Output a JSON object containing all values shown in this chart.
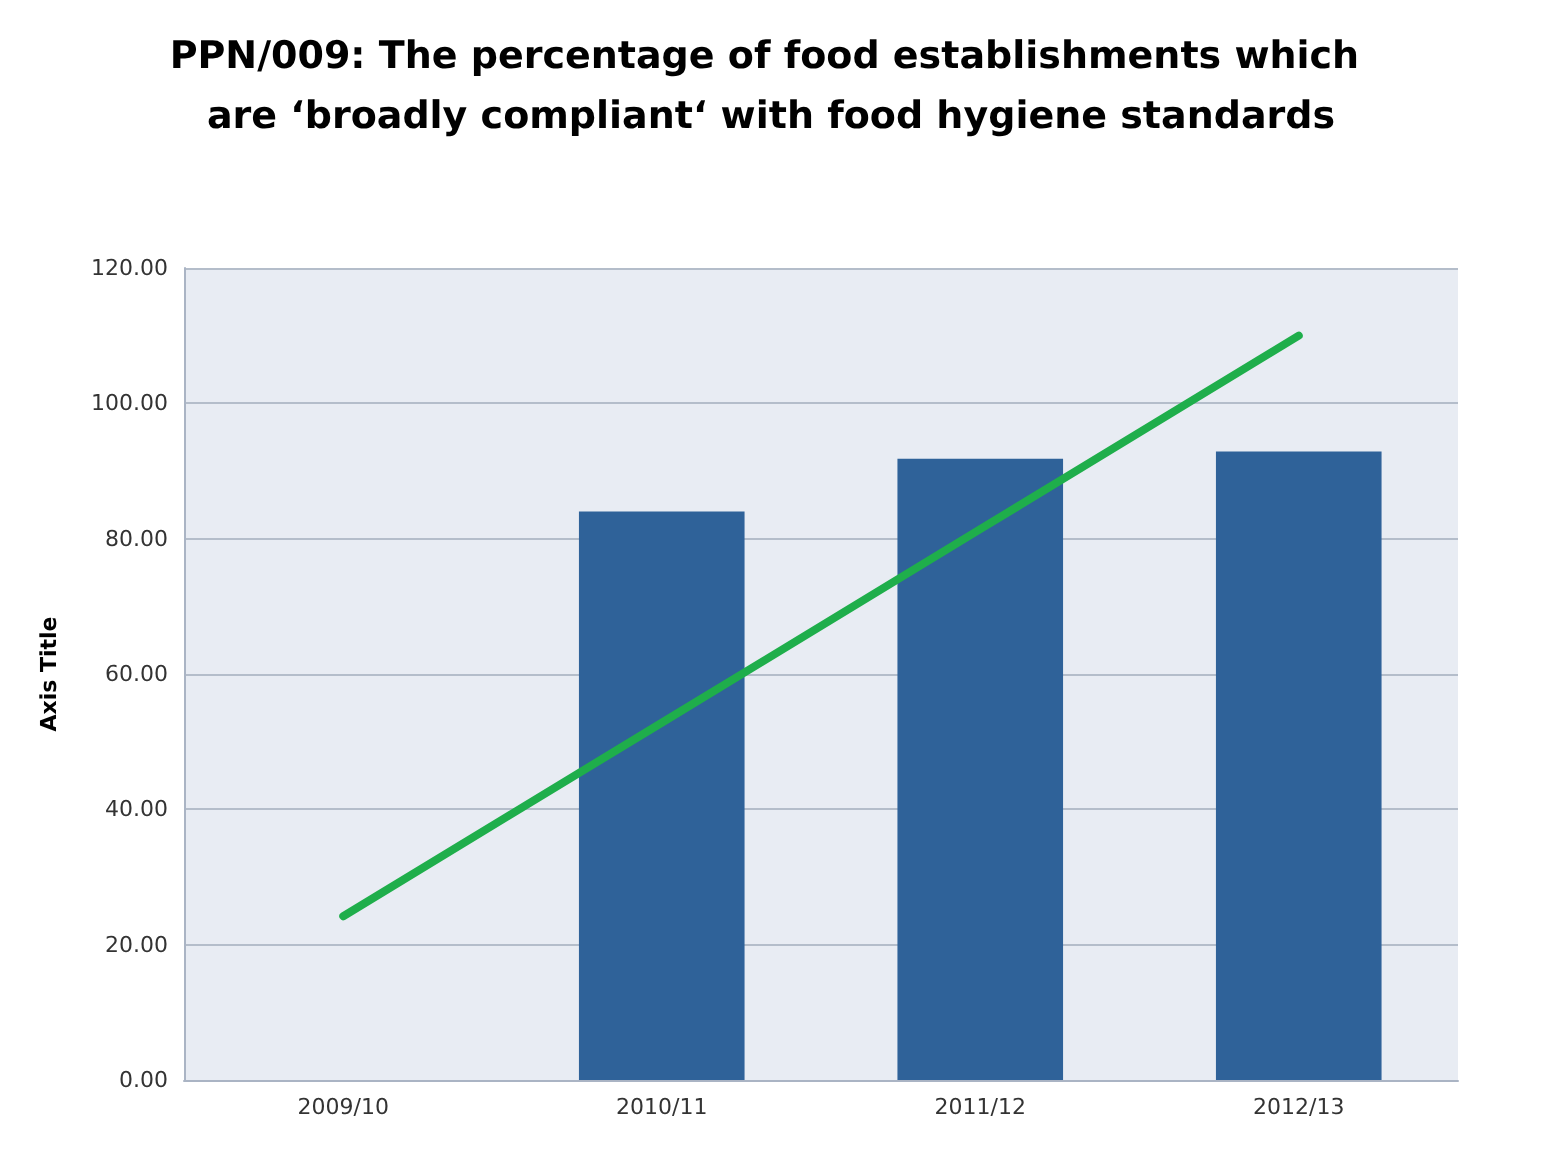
{
  "chart_data": {
    "type": "bar",
    "title": "PPN/009: The percentage of food establishments which are ‘broadly compliant‘ with food hygiene standards",
    "ylabel": "Axis Title",
    "categories": [
      "2009/10",
      "2010/11",
      "2011/12",
      "2012/13"
    ],
    "series": [
      {
        "color": "#2f6299",
        "values": [
          null,
          84.0,
          91.8,
          92.9
        ]
      },
      {
        "type": "line",
        "color": "#1fae4b",
        "values": [
          24.2,
          52.8,
          81.4,
          110.0
        ]
      }
    ],
    "ylim": [
      0,
      120
    ],
    "yticks": [
      {
        "value": 0,
        "label": "0.00"
      },
      {
        "value": 20,
        "label": "20.00"
      },
      {
        "value": 40,
        "label": "40.00"
      },
      {
        "value": 60,
        "label": "60.00"
      },
      {
        "value": 80,
        "label": "80.00"
      },
      {
        "value": 100,
        "label": "100.00"
      },
      {
        "value": 120,
        "label": "120.00"
      }
    ],
    "grid": "y",
    "marker": "none"
  }
}
